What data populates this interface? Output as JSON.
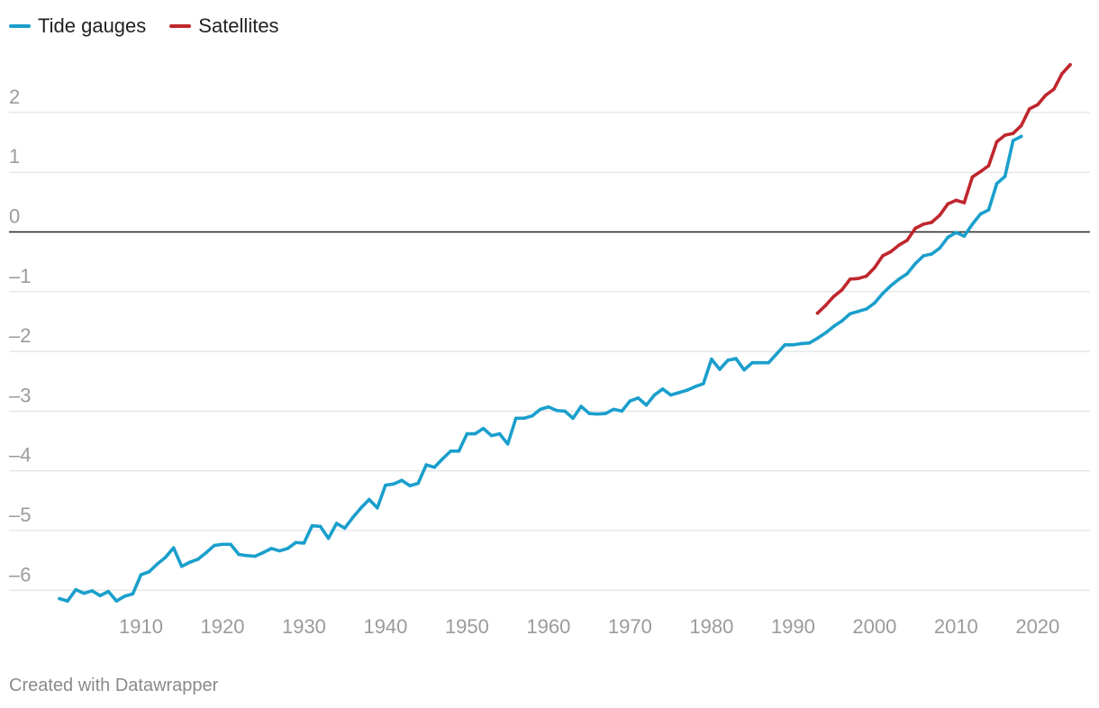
{
  "legend": [
    {
      "label": "Tide gauges",
      "color": "#1a9fcc"
    },
    {
      "label": "Satellites",
      "color": "#c0262d"
    }
  ],
  "footer": {
    "credit": "Created with Datawrapper"
  },
  "colors": {
    "grid": "#dddddd",
    "zero_line": "#222222",
    "tick_text": "#9b9b9b"
  },
  "chart_data": {
    "type": "line",
    "title": "",
    "xlabel": "",
    "ylabel": "",
    "xlim": [
      1900,
      2024
    ],
    "ylim": [
      -6.25,
      2.85
    ],
    "y_ticks": [
      2,
      1,
      0,
      -1,
      -2,
      -3,
      -4,
      -5,
      -6
    ],
    "y_tick_labels": [
      "2",
      "1",
      "0",
      "–1",
      "–2",
      "–3",
      "–4",
      "–5",
      "–6"
    ],
    "x_ticks": [
      1910,
      1920,
      1930,
      1940,
      1950,
      1960,
      1970,
      1980,
      1990,
      2000,
      2010,
      2020
    ],
    "x_tick_labels": [
      "1910",
      "1920",
      "1930",
      "1940",
      "1950",
      "1960",
      "1970",
      "1980",
      "1990",
      "2000",
      "2010",
      "2020"
    ],
    "series": [
      {
        "name": "Tide gauges",
        "color": "#1a9fcc",
        "x": [
          1900,
          1901,
          1902,
          1903,
          1904,
          1905,
          1906,
          1907,
          1908,
          1909,
          1910,
          1911,
          1912,
          1913,
          1914,
          1915,
          1916,
          1917,
          1918,
          1919,
          1920,
          1921,
          1922,
          1923,
          1924,
          1925,
          1926,
          1927,
          1928,
          1929,
          1930,
          1931,
          1932,
          1933,
          1934,
          1935,
          1936,
          1937,
          1938,
          1939,
          1940,
          1941,
          1942,
          1943,
          1944,
          1945,
          1946,
          1947,
          1948,
          1949,
          1950,
          1951,
          1952,
          1953,
          1954,
          1955,
          1956,
          1957,
          1958,
          1959,
          1960,
          1961,
          1962,
          1963,
          1964,
          1965,
          1966,
          1967,
          1968,
          1969,
          1970,
          1971,
          1972,
          1973,
          1974,
          1975,
          1976,
          1977,
          1978,
          1979,
          1980,
          1981,
          1982,
          1983,
          1984,
          1985,
          1986,
          1987,
          1988,
          1989,
          1990,
          1991,
          1992,
          1993,
          1994,
          1995,
          1996,
          1997,
          1998,
          1999,
          2000,
          2001,
          2002,
          2003,
          2004,
          2005,
          2006,
          2007,
          2008,
          2009,
          2010,
          2011,
          2012,
          2013,
          2014,
          2015,
          2016,
          2017,
          2018
        ],
        "values": [
          -6.14,
          -6.18,
          -5.99,
          -6.05,
          -6.01,
          -6.09,
          -6.02,
          -6.18,
          -6.1,
          -6.06,
          -5.74,
          -5.69,
          -5.56,
          -5.45,
          -5.29,
          -5.6,
          -5.53,
          -5.48,
          -5.37,
          -5.25,
          -5.23,
          -5.23,
          -5.4,
          -5.42,
          -5.43,
          -5.37,
          -5.3,
          -5.34,
          -5.3,
          -5.2,
          -5.21,
          -4.92,
          -4.93,
          -5.13,
          -4.88,
          -4.96,
          -4.78,
          -4.62,
          -4.48,
          -4.62,
          -4.24,
          -4.22,
          -4.16,
          -4.25,
          -4.21,
          -3.9,
          -3.94,
          -3.8,
          -3.67,
          -3.67,
          -3.38,
          -3.38,
          -3.29,
          -3.41,
          -3.38,
          -3.55,
          -3.12,
          -3.12,
          -3.08,
          -2.97,
          -2.93,
          -2.99,
          -3.0,
          -3.12,
          -2.92,
          -3.04,
          -3.05,
          -3.04,
          -2.97,
          -3.0,
          -2.83,
          -2.78,
          -2.9,
          -2.73,
          -2.63,
          -2.73,
          -2.69,
          -2.65,
          -2.59,
          -2.54,
          -2.13,
          -2.3,
          -2.15,
          -2.12,
          -2.31,
          -2.19,
          -2.19,
          -2.19,
          -2.04,
          -1.89,
          -1.89,
          -1.87,
          -1.86,
          -1.78,
          -1.69,
          -1.58,
          -1.49,
          -1.37,
          -1.33,
          -1.29,
          -1.19,
          -1.03,
          -0.9,
          -0.79,
          -0.7,
          -0.53,
          -0.4,
          -0.37,
          -0.27,
          -0.09,
          -0.01,
          -0.07,
          0.13,
          0.3,
          0.37,
          0.81,
          0.93,
          1.53,
          1.6
        ]
      },
      {
        "name": "Satellites",
        "color": "#c0262d",
        "x": [
          1993,
          1994,
          1995,
          1996,
          1997,
          1998,
          1999,
          2000,
          2001,
          2002,
          2003,
          2004,
          2005,
          2006,
          2007,
          2008,
          2009,
          2010,
          2011,
          2012,
          2013,
          2014,
          2015,
          2016,
          2017,
          2018,
          2019,
          2020,
          2021,
          2022,
          2023,
          2024
        ],
        "values": [
          -1.36,
          -1.23,
          -1.08,
          -0.97,
          -0.79,
          -0.78,
          -0.74,
          -0.6,
          -0.4,
          -0.33,
          -0.22,
          -0.14,
          0.06,
          0.13,
          0.16,
          0.28,
          0.47,
          0.53,
          0.49,
          0.92,
          1.01,
          1.11,
          1.51,
          1.62,
          1.65,
          1.78,
          2.06,
          2.13,
          2.29,
          2.39,
          2.65,
          2.8
        ]
      }
    ]
  }
}
